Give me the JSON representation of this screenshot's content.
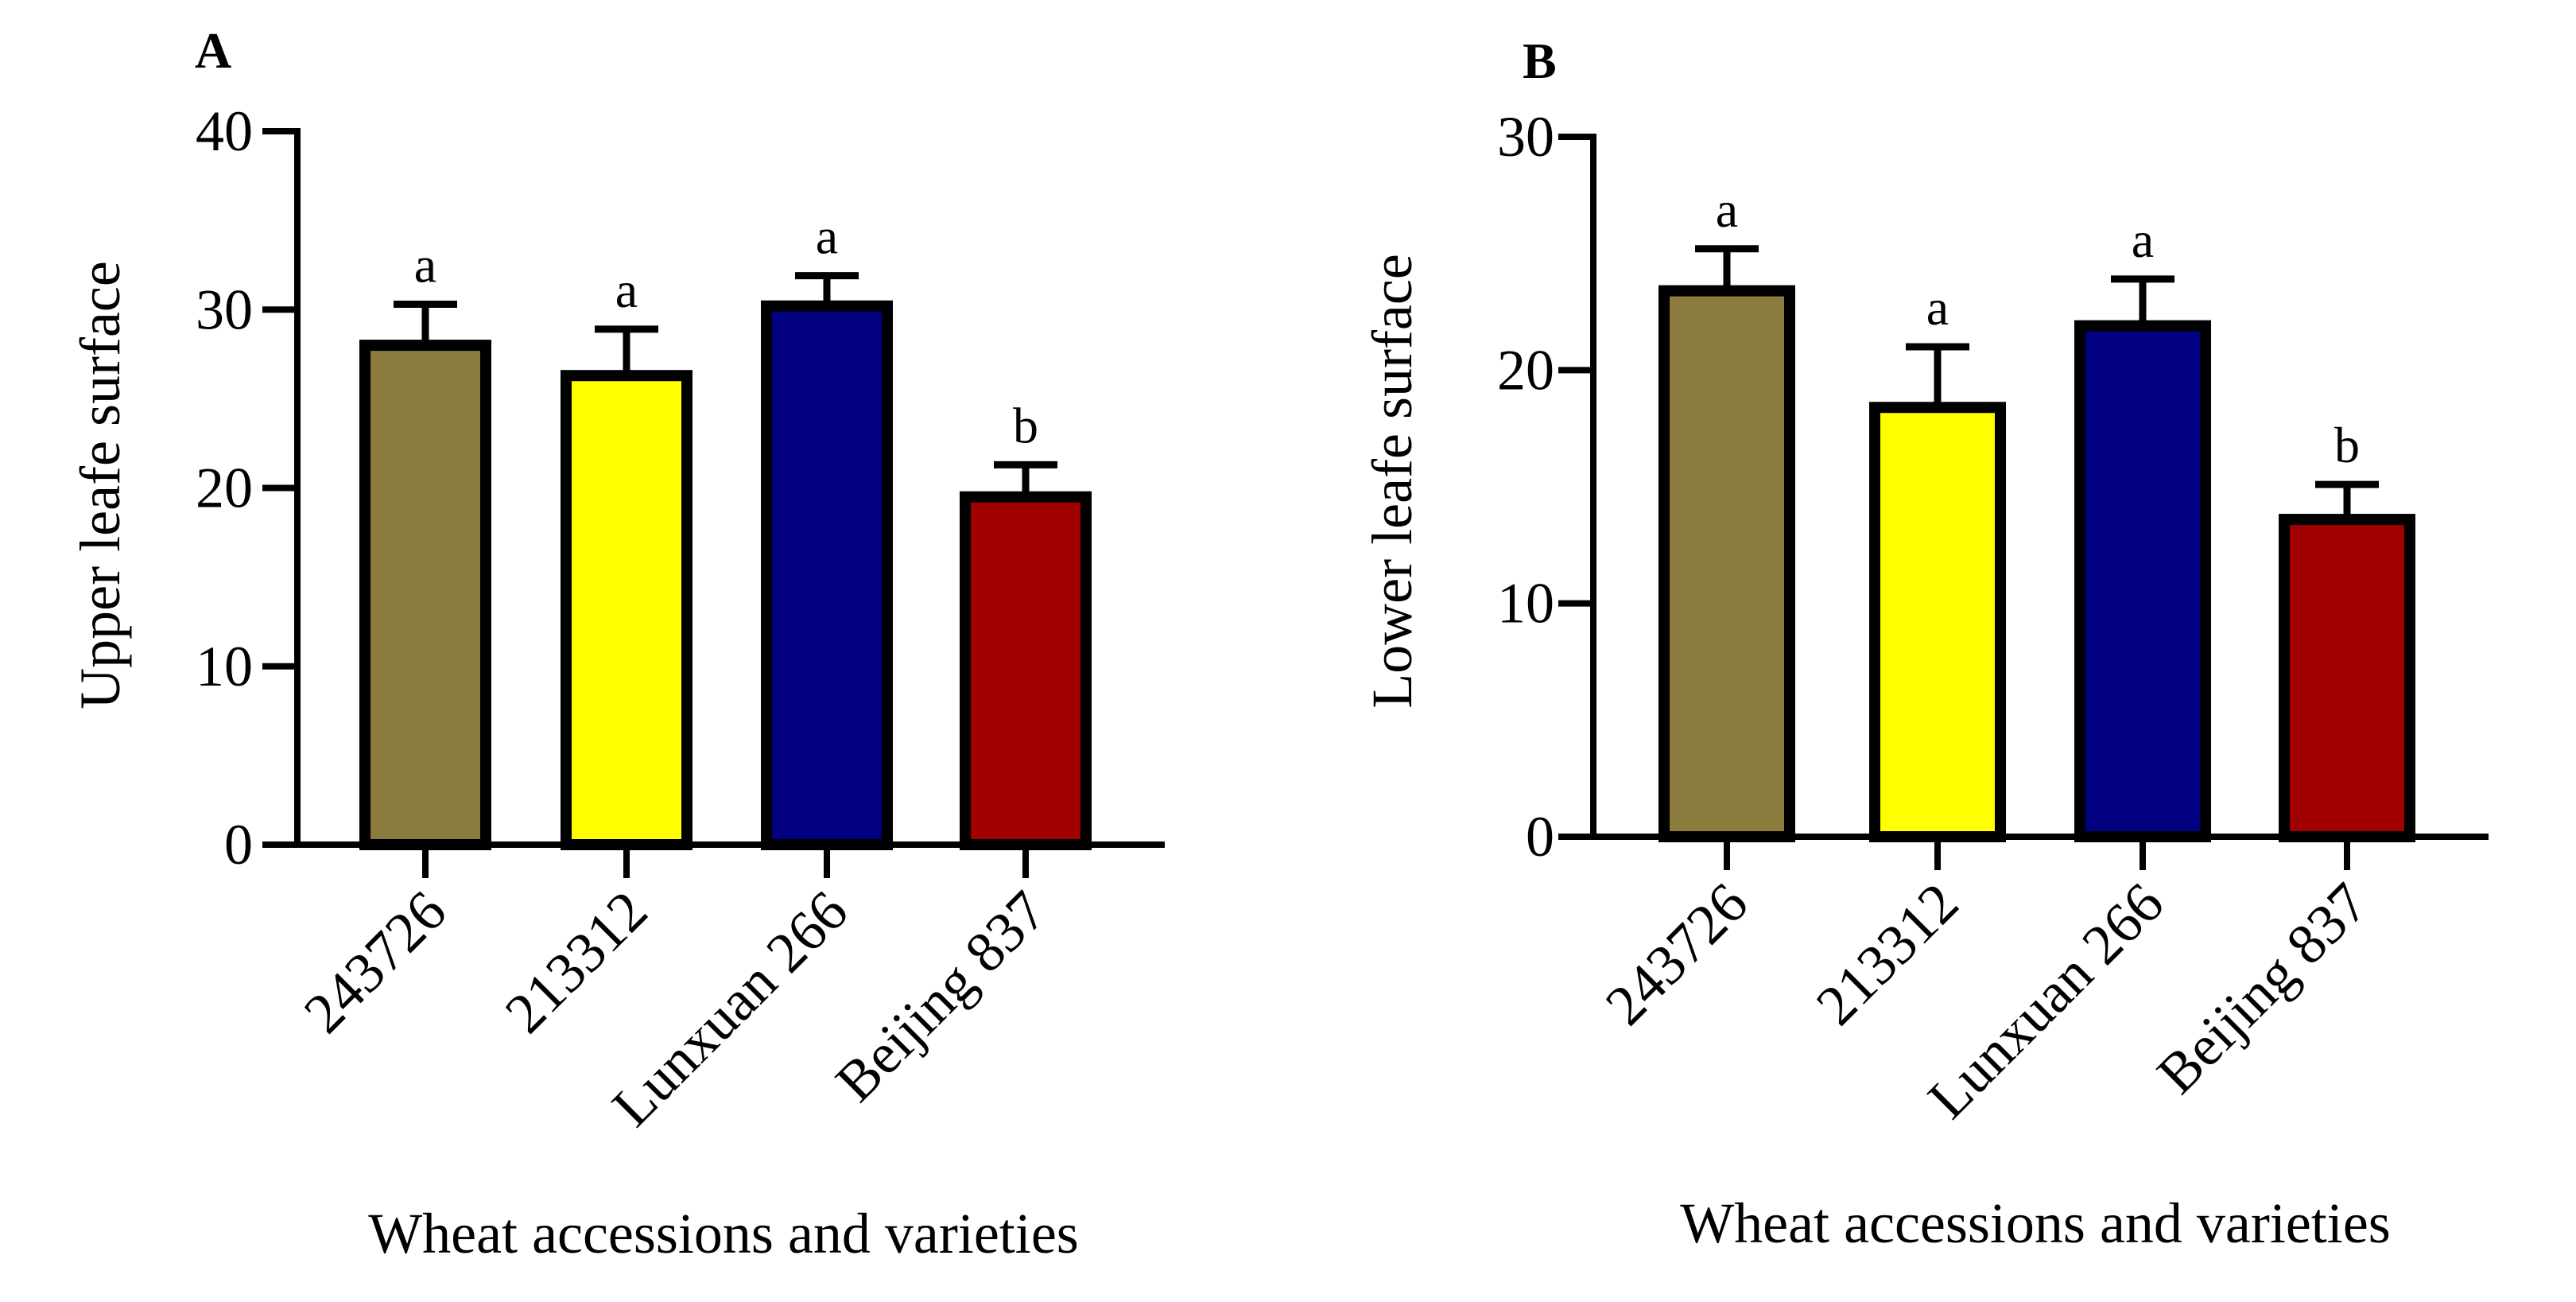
{
  "chart_data": [
    {
      "type": "bar",
      "panel": "A",
      "title": "",
      "xlabel": "Wheat accessions and varieties",
      "ylabel": "Upper leafe surface",
      "ylim": [
        0,
        40
      ],
      "yticks": [
        "0",
        "10",
        "20",
        "30",
        "40"
      ],
      "categories": [
        "243726",
        "213312",
        "Lunxuan 266",
        "Beijing 837"
      ],
      "values": [
        28.0,
        26.3,
        30.2,
        19.5
      ],
      "errors": [
        2.3,
        2.6,
        1.7,
        1.8
      ],
      "significance": [
        "a",
        "a",
        "a",
        "b"
      ],
      "colors": [
        "#8b7b3c",
        "#ffff00",
        "#000080",
        "#a00000"
      ],
      "grid": false
    },
    {
      "type": "bar",
      "panel": "B",
      "title": "",
      "xlabel": "Wheat accessions and varieties",
      "ylabel": "Lower leafe surface",
      "ylim": [
        0,
        30
      ],
      "yticks": [
        "0",
        "10",
        "20",
        "30"
      ],
      "categories": [
        "243726",
        "213312",
        "Lunxuan 266",
        "Beijing 837"
      ],
      "values": [
        23.4,
        18.4,
        21.9,
        13.6
      ],
      "errors": [
        1.8,
        2.6,
        2.0,
        1.5
      ],
      "significance": [
        "a",
        "a",
        "a",
        "b"
      ],
      "colors": [
        "#8b7b3c",
        "#ffff00",
        "#000080",
        "#a00000"
      ],
      "grid": false
    }
  ]
}
